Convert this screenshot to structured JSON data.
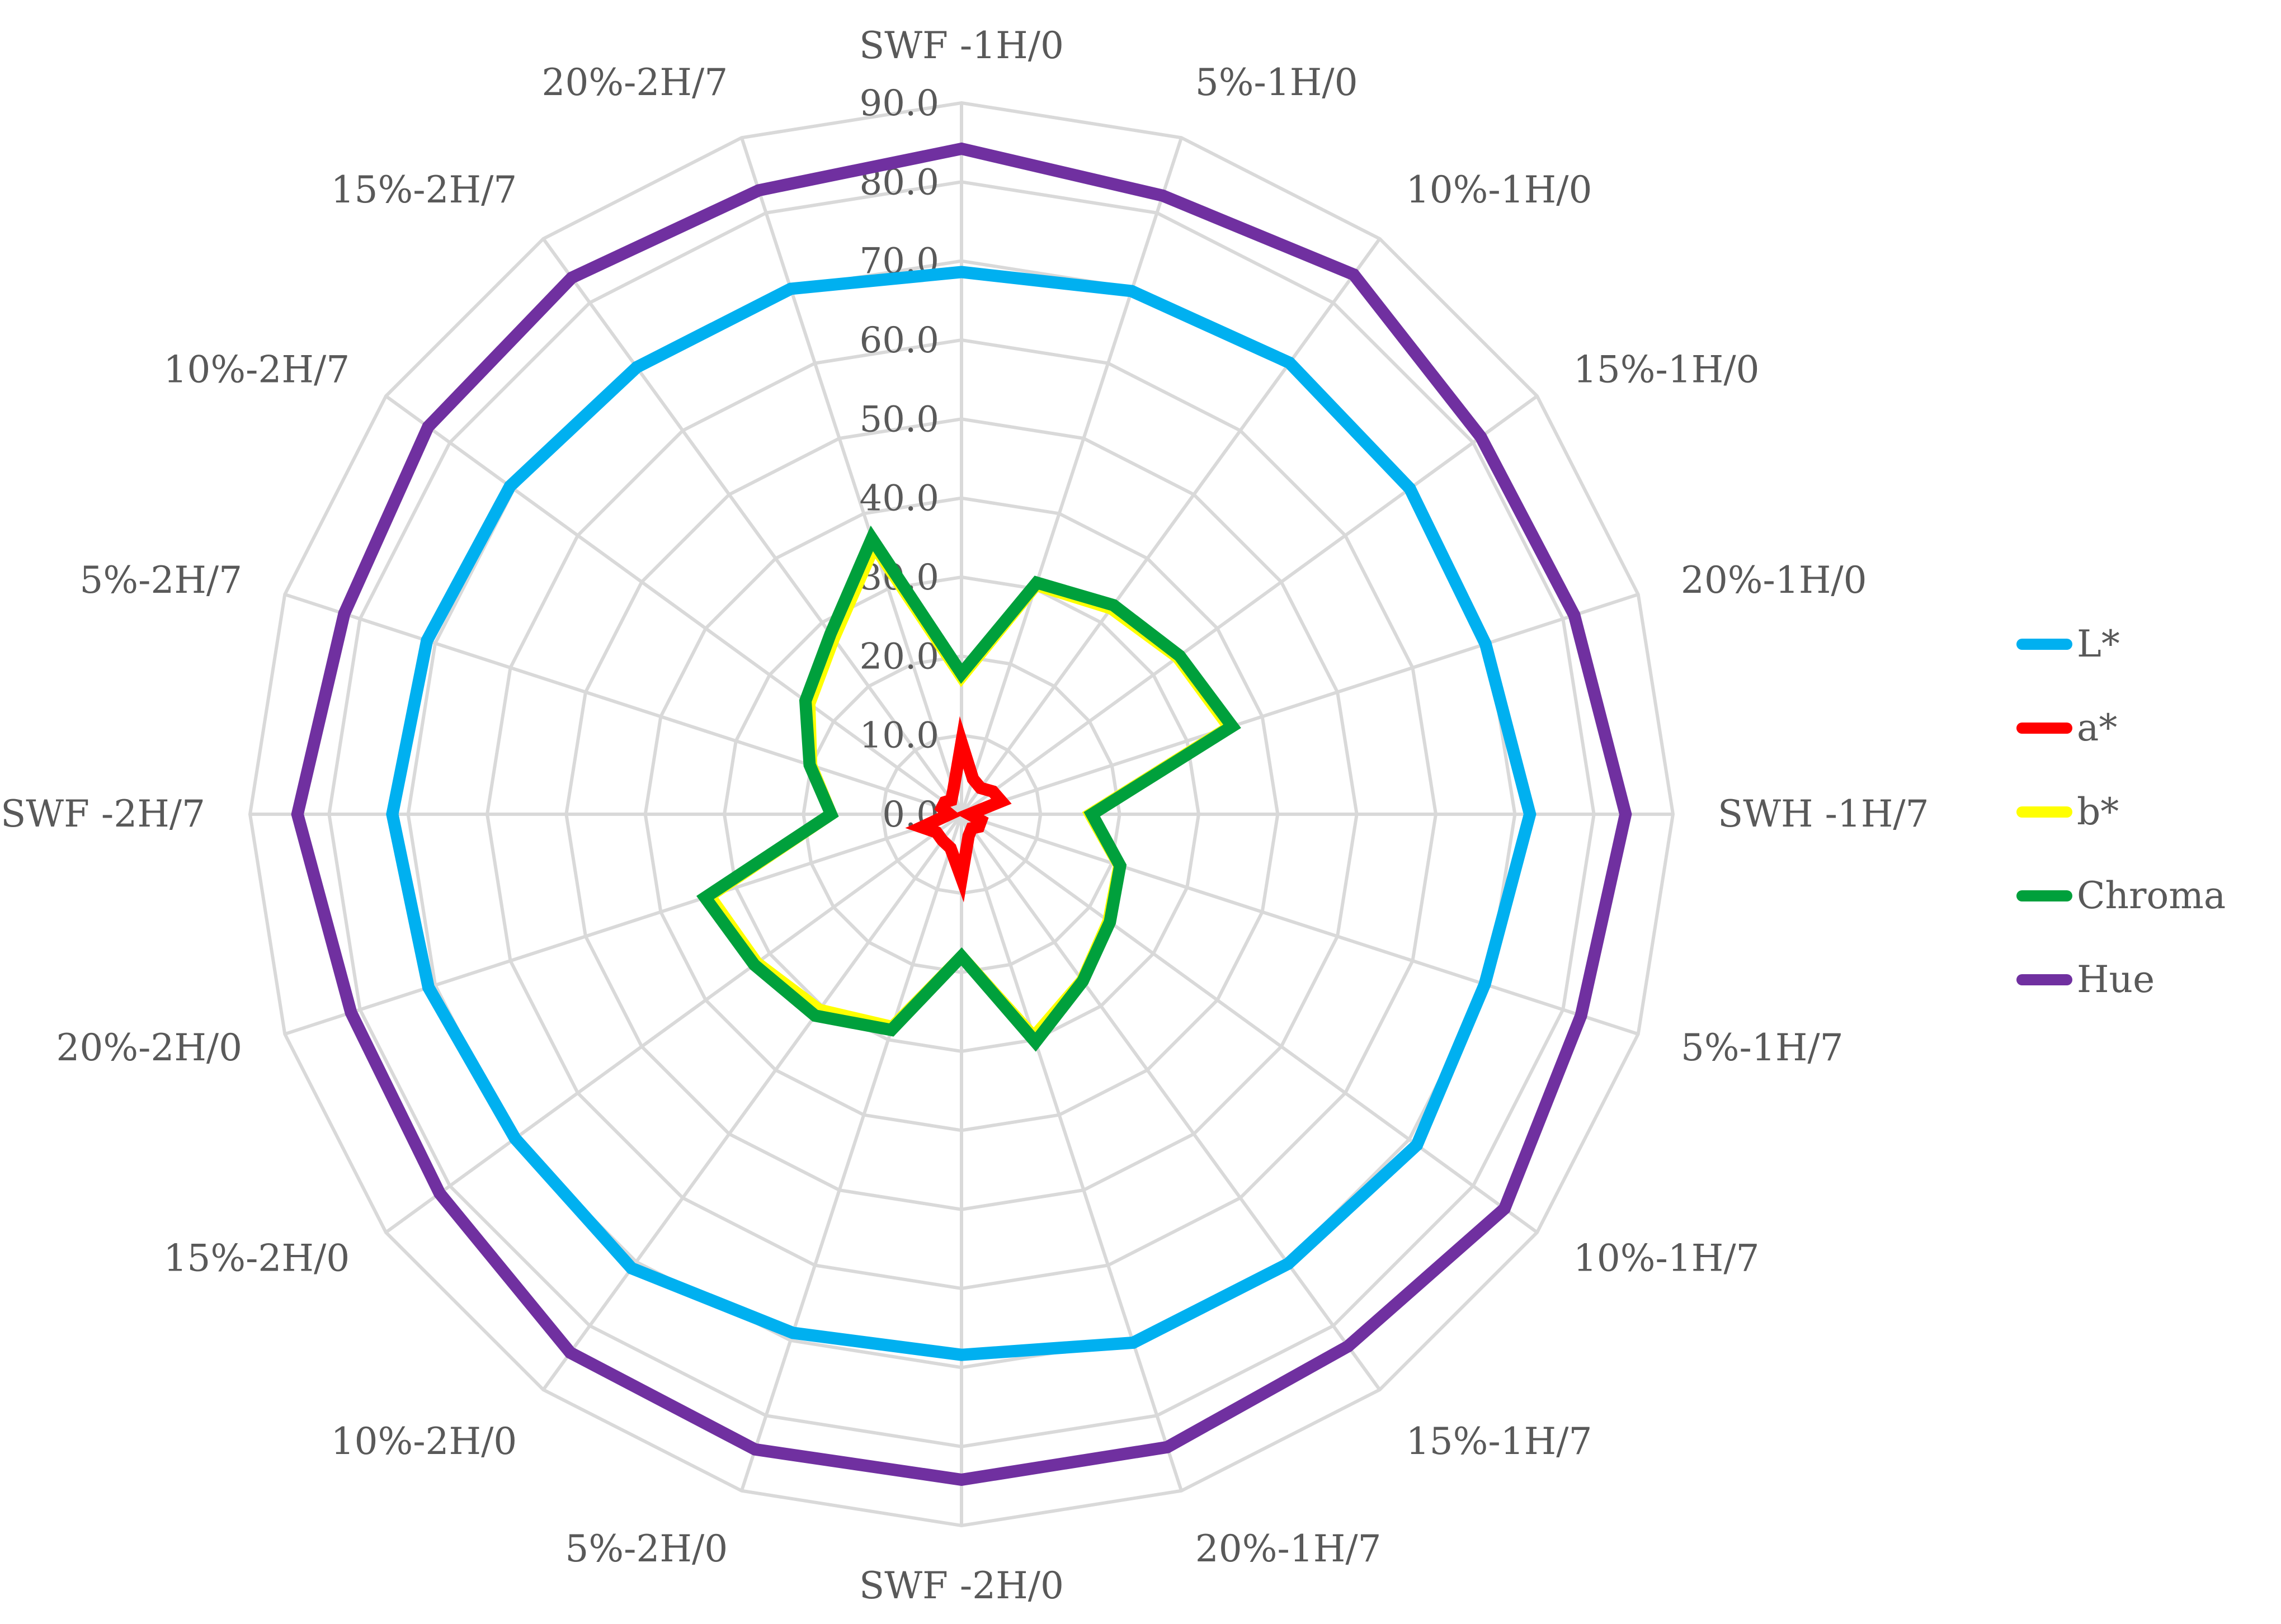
{
  "chart_data": {
    "type": "radar",
    "title": "",
    "categories": [
      "SWF -1H/0",
      "5%-1H/0",
      "10%-1H/0",
      "15%-1H/0",
      "20%-1H/0",
      "SWH -1H/7",
      "5%-1H/7",
      "10%-1H/7",
      "15%-1H/7",
      "20%-1H/7",
      "SWF -2H/0",
      "5%-2H/0",
      "10%-2H/0",
      "15%-2H/0",
      "20%-2H/0",
      "SWF -2H/7",
      "5%-2H/7",
      "10%-2H/7",
      "15%-2H/7",
      "20%-2H/7"
    ],
    "rlim": [
      0,
      90
    ],
    "ticks": [
      0,
      10,
      20,
      30,
      40,
      50,
      60,
      70,
      80,
      90
    ],
    "tick_labels": [
      "0.0",
      "10.0",
      "20.0",
      "30.0",
      "40.0",
      "50.0",
      "60.0",
      "70.0",
      "80.0",
      "90.0"
    ],
    "grid": true,
    "legend_position": "right",
    "series": [
      {
        "name": "L*",
        "color": "#00b0f0",
        "values": [
          68.6,
          69.6,
          70.6,
          70.1,
          69.7,
          71.9,
          69.6,
          71.2,
          70.3,
          70.3,
          68.4,
          69.0,
          71.0,
          69.8,
          70.9,
          72.0,
          71.1,
          70.6,
          69.9,
          69.9
        ]
      },
      {
        "name": "a*",
        "color": "#ff0000",
        "values": [
          9.1,
          4.7,
          4.1,
          4.9,
          5.3,
          1.0,
          2.6,
          2.7,
          2.2,
          2.9,
          8.1,
          4.5,
          4.1,
          3.9,
          5.3,
          1.5,
          2.6,
          2.6,
          2.2,
          3.3
        ]
      },
      {
        "name": "b*",
        "color": "#ffff00",
        "values": [
          17.4,
          30.5,
          32.2,
          33.8,
          35.6,
          16.3,
          21.0,
          23.0,
          26.0,
          29.6,
          18.0,
          28.3,
          30.6,
          32.0,
          33.5,
          16.5,
          20.0,
          23.8,
          27.5,
          35.7
        ]
      },
      {
        "name": "Chroma",
        "color": "#00a03c",
        "values": [
          17.8,
          30.8,
          32.7,
          34.1,
          36.0,
          16.5,
          21.1,
          23.2,
          26.1,
          30.3,
          18.0,
          28.7,
          31.5,
          32.4,
          34.1,
          16.5,
          20.2,
          24.4,
          28.2,
          36.7
        ]
      },
      {
        "name": "Hue",
        "color": "#7030a0",
        "values": [
          84.2,
          82.3,
          84.4,
          81.2,
          81.5,
          84.0,
          82.4,
          84.9,
          83.2,
          84.2,
          84.2,
          84.5,
          84.2,
          81.6,
          81.2,
          84.0,
          82.1,
          83.4,
          83.9,
          83.0
        ]
      }
    ]
  }
}
